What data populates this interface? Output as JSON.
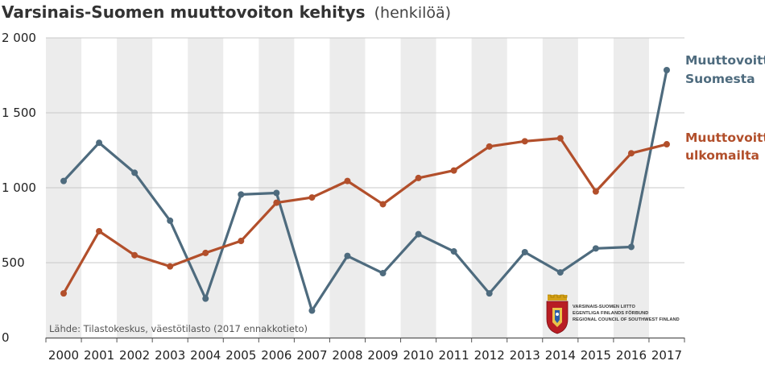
{
  "title": {
    "main": "Varsinais-Suomen muuttovoiton kehitys",
    "sub": "(henkilöä)"
  },
  "source": "Lähde: Tilastokeskus, väestötilasto (2017 ennakkotieto)",
  "logo": {
    "lines": [
      "VARSINAIS-SUOMEN LIITTO",
      "EGENTLIGA FINLANDS FÖRBUND",
      "REGIONAL COUNCIL OF SOUTHWEST FINLAND"
    ]
  },
  "colors": {
    "domestic": "#4e6b7e",
    "foreign": "#b24f2b",
    "band": "#ececec",
    "grid": "#c8c8c8",
    "axis": "#555555"
  },
  "chart_data": {
    "type": "line",
    "title": "Varsinais-Suomen muuttovoiton kehitys (henkilöä)",
    "xlabel": "",
    "ylabel": "",
    "ylim": [
      0,
      2000
    ],
    "yticks": [
      0,
      500,
      1000,
      1500,
      2000
    ],
    "ytick_labels": [
      "0",
      "500",
      "1 000",
      "1 500",
      "2 000"
    ],
    "grid": true,
    "legend": "right",
    "categories": [
      "2000",
      "2001",
      "2002",
      "2003",
      "2004",
      "2005",
      "2006",
      "2007",
      "2008",
      "2009",
      "2010",
      "2011",
      "2012",
      "2013",
      "2014",
      "2015",
      "2016",
      "2017"
    ],
    "series": [
      {
        "name": "Muuttovoitto Suomesta",
        "label_lines": [
          "Muuttovoitto",
          "Suomesta"
        ],
        "values": [
          1045,
          1300,
          1100,
          780,
          260,
          955,
          965,
          180,
          545,
          430,
          690,
          575,
          295,
          570,
          435,
          595,
          605,
          1785
        ]
      },
      {
        "name": "Muuttovoitto ulkomailta",
        "label_lines": [
          "Muuttovoitto",
          "ulkomailta"
        ],
        "values": [
          295,
          710,
          550,
          475,
          565,
          645,
          900,
          935,
          1045,
          890,
          1065,
          1115,
          1275,
          1310,
          1330,
          975,
          1230,
          1290
        ]
      }
    ]
  }
}
